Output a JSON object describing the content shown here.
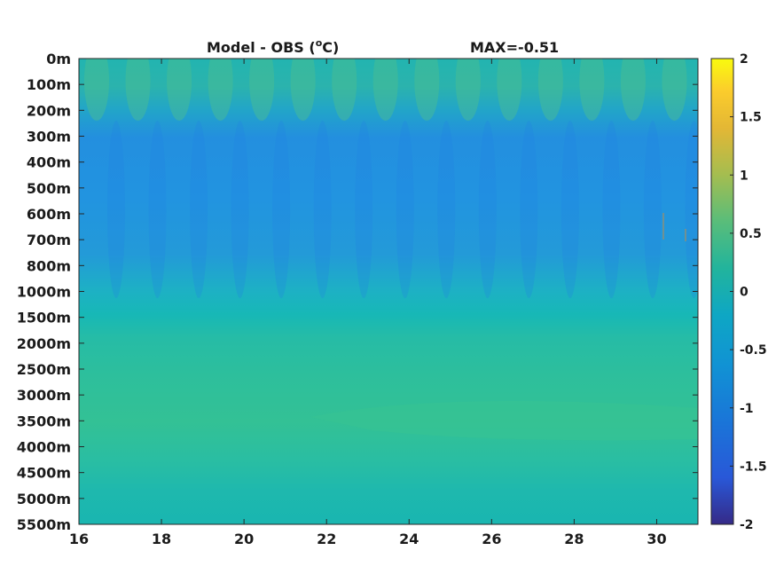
{
  "chart_data": {
    "type": "heatmap",
    "title_left": "Model - OBS (",
    "title_unit": "o",
    "title_unit_tail": "C)",
    "title_right": "MAX=-0.51",
    "x_ticks": [
      "16",
      "18",
      "20",
      "22",
      "24",
      "26",
      "28",
      "30"
    ],
    "x_tick_values": [
      16,
      18,
      20,
      22,
      24,
      26,
      28,
      30
    ],
    "xlim": [
      16,
      31
    ],
    "y_ticks": [
      "0m",
      "100m",
      "200m",
      "300m",
      "400m",
      "500m",
      "600m",
      "700m",
      "800m",
      "1000m",
      "1500m",
      "2000m",
      "2500m",
      "3000m",
      "3500m",
      "4000m",
      "4500m",
      "5000m",
      "5500m"
    ],
    "colorbar": {
      "ticks": [
        "2",
        "1.5",
        "1",
        "0.5",
        "0",
        "-0.5",
        "-1",
        "-1.5",
        "-2"
      ],
      "tick_values": [
        2,
        1.5,
        1,
        0.5,
        0,
        -0.5,
        -1,
        -1.5,
        -2
      ],
      "range": [
        -2,
        2
      ],
      "colormap": "parula"
    },
    "depth_profile": {
      "depth_labels": [
        "0m",
        "100m",
        "200m",
        "300m",
        "400m",
        "500m",
        "600m",
        "700m",
        "800m",
        "1000m",
        "1500m",
        "2000m",
        "2500m",
        "3000m",
        "3500m",
        "4000m",
        "4500m",
        "5000m",
        "5500m"
      ],
      "typical_difference": [
        0.05,
        0.05,
        -0.05,
        -0.3,
        -0.5,
        -0.55,
        -0.55,
        -0.55,
        -0.45,
        -0.15,
        0.15,
        0.25,
        0.3,
        0.35,
        0.35,
        0.25,
        0.15,
        0.12,
        0.1
      ]
    }
  }
}
